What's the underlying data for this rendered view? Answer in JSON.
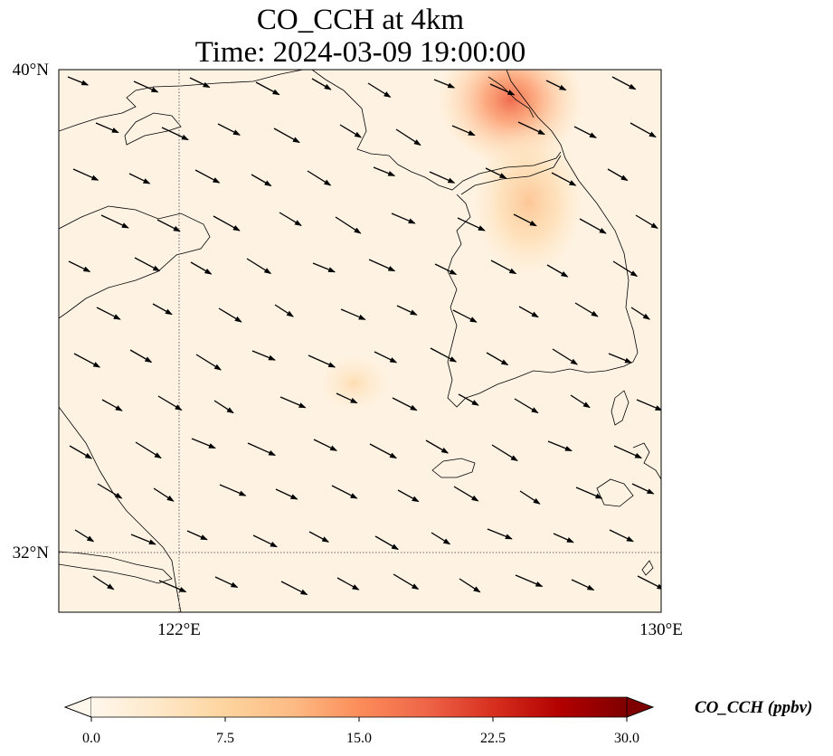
{
  "title": {
    "line1": "CO_CCH at 4km",
    "line2": "Time: 2024-03-09 19:00:00"
  },
  "axes": {
    "lat_ticks": [
      {
        "label": "40°N",
        "value": 40
      },
      {
        "label": "32°N",
        "value": 32
      }
    ],
    "lon_ticks": [
      {
        "label": "122°E",
        "value": 122
      },
      {
        "label": "130°E",
        "value": 130
      }
    ],
    "lon_range": [
      120,
      130
    ],
    "lat_range": [
      31,
      40
    ],
    "gridlines": "dotted, at 122°E and 32°N"
  },
  "colorbar": {
    "label": "CO_CCH (ppbv)",
    "ticks": [
      "0.0",
      "7.5",
      "15.0",
      "22.5",
      "30.0"
    ],
    "vmin": 0,
    "vmax": 30,
    "colormap": "OrRd",
    "extend": "both",
    "colors": [
      "#fff7ec",
      "#fee8c8",
      "#fdd49e",
      "#fdbb84",
      "#fc8d59",
      "#ef6548",
      "#d7301f",
      "#b30000",
      "#7f0000"
    ]
  },
  "field": {
    "background_ppbv": 1.0,
    "hotspots": [
      {
        "name": "Dalian / Liaodong peninsula plume",
        "lon": 127.5,
        "lat": 39.5,
        "peak_ppbv": 13
      },
      {
        "name": "NW Korea plume",
        "lon": 127.8,
        "lat": 37.8,
        "peak_ppbv": 6
      },
      {
        "name": "Yellow Sea weak enhancement",
        "lon": 124.9,
        "lat": 34.8,
        "peak_ppbv": 3
      }
    ]
  },
  "wind_vectors_direction": "from WNW toward ESE, roughly uniform across domain"
}
